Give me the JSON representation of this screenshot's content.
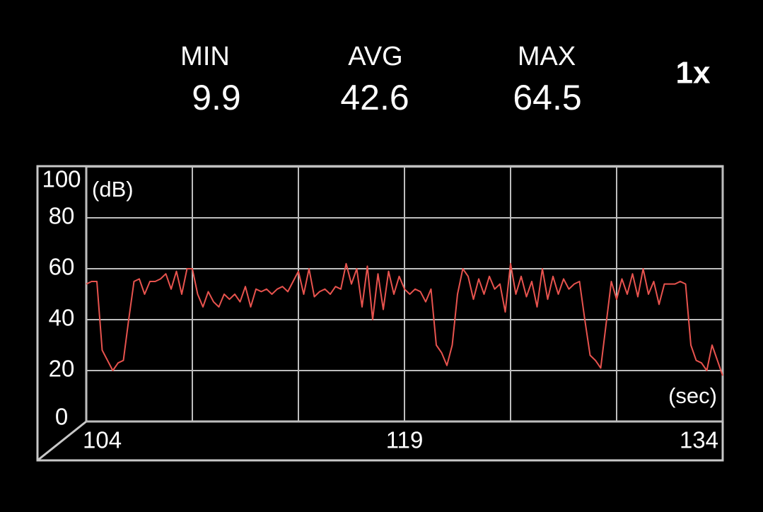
{
  "stats": [
    {
      "label": "MIN",
      "value": 9.9
    },
    {
      "label": "AVG",
      "value": 42.6
    },
    {
      "label": "MAX",
      "value": 64.5
    }
  ],
  "speed": "1x",
  "chart_data": {
    "type": "line",
    "y_unit": "(dB)",
    "x_unit": "(sec)",
    "ylim": [
      0,
      100
    ],
    "yticks": [
      0,
      20,
      40,
      60,
      80,
      100
    ],
    "xlim": [
      104,
      134
    ],
    "xticks": [
      104,
      119,
      134
    ],
    "xgrid": [
      104,
      109,
      114,
      119,
      124,
      129,
      134
    ],
    "grid": true,
    "series": [
      {
        "color": "#e8534e",
        "x": [
          104,
          104.25,
          104.5,
          104.75,
          105,
          105.25,
          105.5,
          105.75,
          106,
          106.25,
          106.5,
          106.75,
          107,
          107.25,
          107.5,
          107.75,
          108,
          108.25,
          108.5,
          108.75,
          109,
          109.25,
          109.5,
          109.75,
          110,
          110.25,
          110.5,
          110.75,
          111,
          111.25,
          111.5,
          111.75,
          112,
          112.25,
          112.5,
          112.75,
          113,
          113.25,
          113.5,
          113.75,
          114,
          114.25,
          114.5,
          114.75,
          115,
          115.25,
          115.5,
          115.75,
          116,
          116.25,
          116.5,
          116.75,
          117,
          117.25,
          117.5,
          117.75,
          118,
          118.25,
          118.5,
          118.75,
          119,
          119.25,
          119.5,
          119.75,
          120,
          120.25,
          120.5,
          120.75,
          121,
          121.25,
          121.5,
          121.75,
          122,
          122.25,
          122.5,
          122.75,
          123,
          123.25,
          123.5,
          123.75,
          124,
          124.25,
          124.5,
          124.75,
          125,
          125.25,
          125.5,
          125.75,
          126,
          126.25,
          126.5,
          126.75,
          127,
          127.25,
          127.5,
          127.75,
          128,
          128.25,
          128.5,
          128.75,
          129,
          129.25,
          129.5,
          129.75,
          130,
          130.25,
          130.5,
          130.75,
          131,
          131.25,
          131.5,
          131.75,
          132,
          132.25,
          132.5,
          132.75,
          133,
          133.25,
          133.5,
          133.75,
          134
        ],
        "values": [
          54,
          55,
          55,
          28,
          24,
          20,
          23,
          24,
          40,
          55,
          56,
          50,
          55,
          55,
          56,
          58,
          52,
          59,
          50,
          60,
          60,
          50,
          45,
          51,
          47,
          45,
          50,
          48,
          50,
          47,
          53,
          45,
          52,
          51,
          52,
          50,
          52,
          53,
          51,
          55,
          59,
          50,
          60,
          49,
          51,
          52,
          50,
          53,
          52,
          62,
          54,
          60,
          45,
          61,
          40,
          58,
          44,
          59,
          50,
          57,
          52,
          50,
          52,
          51,
          47,
          52,
          30,
          27,
          22,
          30,
          50,
          60,
          57,
          48,
          56,
          50,
          57,
          52,
          54,
          43,
          62,
          50,
          57,
          49,
          55,
          45,
          60,
          48,
          57,
          50,
          56,
          52,
          54,
          55,
          40,
          26,
          24,
          21,
          38,
          55,
          48,
          56,
          50,
          58,
          49,
          60,
          50,
          55,
          46,
          54,
          54,
          54,
          55,
          54,
          30,
          24,
          23,
          20,
          30,
          24,
          18
        ]
      }
    ]
  }
}
